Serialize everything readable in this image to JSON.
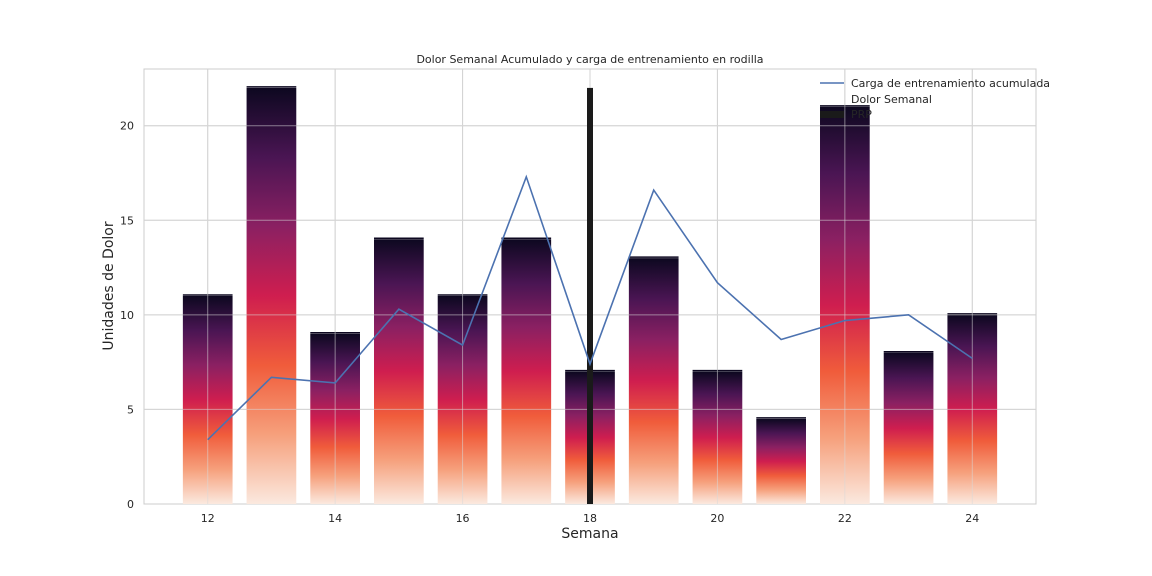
{
  "chart_data": {
    "type": "bar",
    "title": "Dolor Semanal Acumulado y carga de entrenamiento en rodilla",
    "xlabel": "Semana",
    "ylabel": "Unidades de Dolor",
    "xlim": [
      11,
      25
    ],
    "ylim": [
      0,
      23
    ],
    "xticks": [
      12,
      14,
      16,
      18,
      20,
      22,
      24
    ],
    "yticks": [
      0,
      5,
      10,
      15,
      20
    ],
    "grid": true,
    "legend_position": "top-right",
    "weeks": [
      12,
      13,
      14,
      15,
      16,
      17,
      18,
      19,
      20,
      21,
      22,
      23,
      24
    ],
    "series": [
      {
        "name": "Dolor Semanal",
        "kind": "bar",
        "values": [
          11,
          22,
          9,
          14,
          11,
          14,
          7,
          13,
          7,
          4.5,
          21,
          8,
          10
        ]
      },
      {
        "name": "Carga de entrenamiento acumulada",
        "kind": "line",
        "color": "#4c72b0",
        "values": [
          3.4,
          6.7,
          6.4,
          10.3,
          8.4,
          17.3,
          7.4,
          16.6,
          11.7,
          8.7,
          9.7,
          10.0,
          7.7
        ]
      },
      {
        "name": "PRP",
        "kind": "marker",
        "color": "#1a1a1a",
        "x": 18,
        "value": 22
      }
    ],
    "gradient_colors": [
      "#fbe9df",
      "#f6a07c",
      "#f05c3b",
      "#cf1e4f",
      "#8b2062",
      "#4a1553",
      "#0d0820"
    ]
  }
}
